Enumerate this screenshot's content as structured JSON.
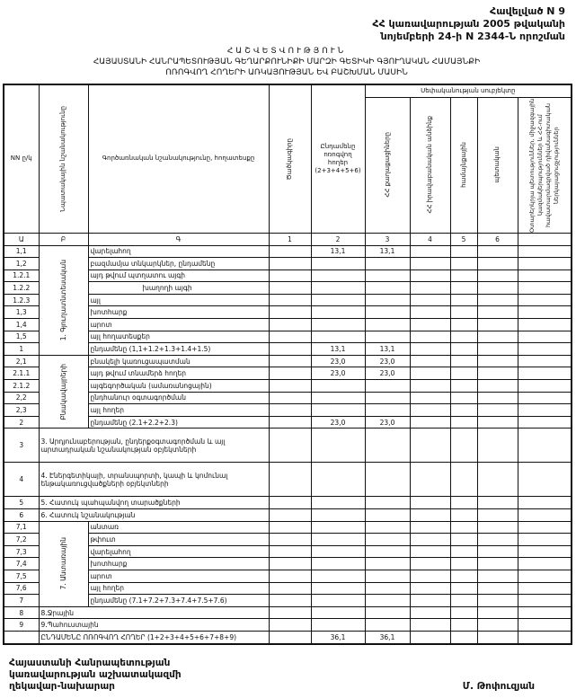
{
  "annex": {
    "line1": "Հավելված N 9",
    "line2": "ՀՀ կառավարության 2005 թվականի",
    "line3": "նոյեմբերի 24-ի N 2344-Ն որոշման"
  },
  "title": {
    "line1": "ՀԱՇՎԵՏՎՈՒԹՅՈՒՆ",
    "line2": "ՀԱՅԱՍՏԱՆԻ ՀԱՆՐԱՊԵՏՈՒԹՅԱՆ ԳԵՂԱՐՔՈՒՆԻՔԻ ՄԱՐԶԻ ԳԵՏԻԿԻ ԳՅՈՒՂԱԿԱՆ ՀԱՄԱՅՆՔԻ",
    "line3": "ՈՌՈԳՎՈՂ ՀՈՂԵՐԻ ԱՌԿԱՅՈՒԹՅԱՆ ԵՎ ԲԱՇԽՄԱՆ ՄԱՍԻՆ"
  },
  "headers": {
    "nn": "NN ը/կ",
    "purpose": "Նպատակային նշանակությունը",
    "function": "Գործառնական նշանակությունը, հողատեսքը",
    "code": "Ծածկագիրը",
    "total": "Ընդամենը ոռոգվող հողեր (2+3+4+5+6)",
    "owner_group": "Սեփականության սուբյեկտը",
    "c2": "ՀՀ քաղաքացիները",
    "c3": "ՀՀ իրավաբանական անձինք",
    "c4": "համայնքային",
    "c5": "պետական",
    "c6": "Օտարերկրյա պետություններ, միջազգային կազմակերպություններ և ՀՀ-ում հավատարմագրված դիվանագիտական ներկայացուցչություններ"
  },
  "index_row": [
    "Ա",
    "Բ",
    "Գ",
    "1",
    "2",
    "3",
    "4",
    "5",
    "6"
  ],
  "groups": {
    "g1": "1. Գյուղատնտեսական",
    "g2": "Բնակավայրերի",
    "g7": "7. Անտառային"
  },
  "rows": [
    {
      "nn": "1,1",
      "label": "վարելահող",
      "total": "13,1",
      "c2": "13,1"
    },
    {
      "nn": "1,2",
      "label": "բազմամյա տնկարկներ, ընդամենը"
    },
    {
      "nn": "1.2.1",
      "label": "այդ թվում      պտղատու այգի"
    },
    {
      "nn": "1.2.2",
      "label": "խաղողի այգի"
    },
    {
      "nn": "1.2.3",
      "label": "այլ"
    },
    {
      "nn": "1,3",
      "label": "խոտհարք"
    },
    {
      "nn": "1,4",
      "label": "արոտ"
    },
    {
      "nn": "1,5",
      "label": "այլ հողատեսքեր"
    },
    {
      "nn": "1",
      "label": "ընդամենը (1,1+1.2+1.3+1.4+1.5)",
      "total": "13,1",
      "c2": "13,1"
    },
    {
      "nn": "2,1",
      "label": "բնակելի կառուցապատման",
      "total": "23,0",
      "c2": "23,0"
    },
    {
      "nn": "2.1.1",
      "label": "այդ թվում տնամերձ հողեր",
      "total": "23,0",
      "c2": "23,0"
    },
    {
      "nn": "2.1.2",
      "label": "այգեգործական (ամառանոցային)"
    },
    {
      "nn": "2,2",
      "label": "ընդհանուր օգտագործման"
    },
    {
      "nn": "2,3",
      "label": "այլ հողեր"
    },
    {
      "nn": "2",
      "label": "ընդամենը (2.1+2.2+2.3)",
      "total": "23,0",
      "c2": "23,0"
    },
    {
      "nn": "3",
      "label": "3. Արդյունաբերության, ընդերքօգտագործման և այլ արտադրական նշանակության օբյեկտների"
    },
    {
      "nn": "4",
      "label": "4. Էներգետիկայի, տրանսպորտի, կապի և կոմունալ ենթակառուցվածքների օբյեկտների"
    },
    {
      "nn": "5",
      "label": "5. Հատուկ պահպանվող տարածքների"
    },
    {
      "nn": "6",
      "label": "6. Հատուկ նշանակության"
    },
    {
      "nn": "7,1",
      "label": "անտառ"
    },
    {
      "nn": "7,2",
      "label": "թփուտ"
    },
    {
      "nn": "7,3",
      "label": "վարելահող"
    },
    {
      "nn": "7,4",
      "label": "խոտհարք"
    },
    {
      "nn": "7,5",
      "label": "արոտ"
    },
    {
      "nn": "7,6",
      "label": "այլ հողեր"
    },
    {
      "nn": "7",
      "label": "ընդամենը (7.1+7.2+7.3+7.4+7.5+7.6)"
    },
    {
      "nn": "8",
      "label": "8.Ջրային"
    },
    {
      "nn": "9",
      "label": "9.Պահուստային"
    }
  ],
  "grand_total": {
    "label": "ԸՆԴԱՄԵՆԸ ՈՌՈԳՎՈՂ ՀՈՂԵՐ (1+2+3+4+5+6+7+8+9)",
    "total": "36,1",
    "c2": "36,1"
  },
  "footer": {
    "line1": "Հայաստանի Հանրապետության",
    "line2": "կառավարության աշխատակազմի",
    "line3": "ղեկավար-նախարար",
    "signatory": "Մ. Թոփուզյան"
  }
}
